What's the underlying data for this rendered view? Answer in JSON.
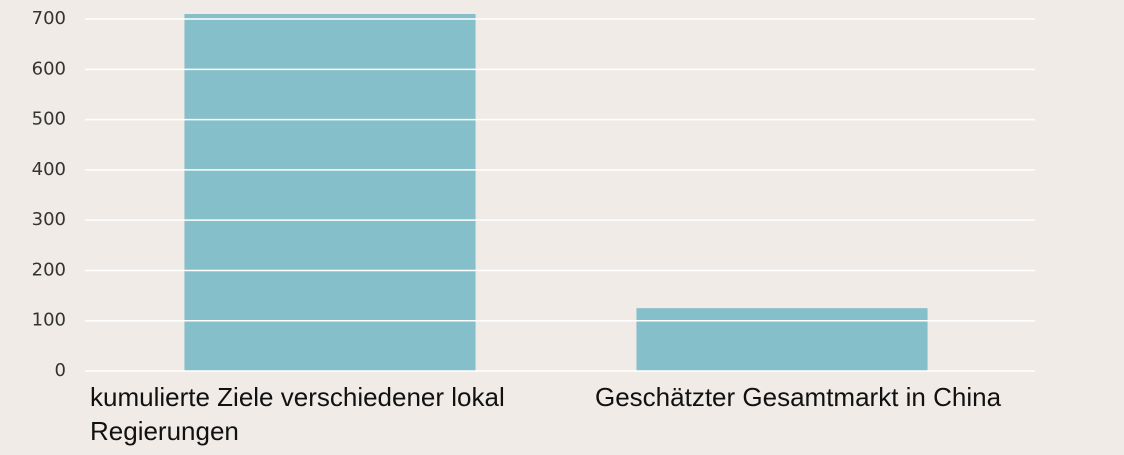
{
  "chart_data": {
    "type": "bar",
    "categories": [
      "kumulierte Ziele verschiedener lokal Regierungen",
      "Geschätzter Gesamtmarkt in China"
    ],
    "values": [
      710,
      125
    ],
    "color": "#85bfc9",
    "ylim": [
      0,
      720
    ],
    "yticks": [
      0,
      100,
      200,
      300,
      400,
      500,
      600,
      700
    ],
    "grid": true
  }
}
